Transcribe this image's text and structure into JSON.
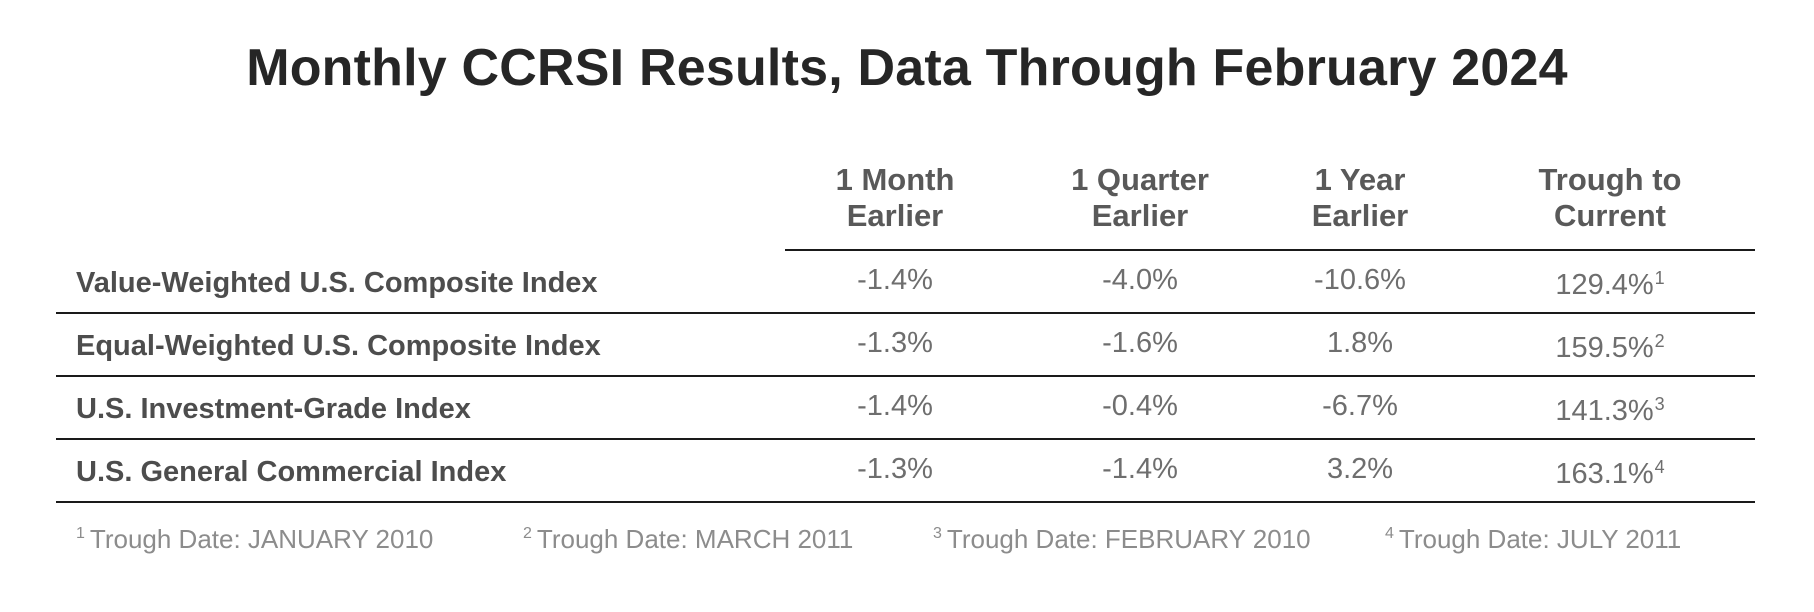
{
  "chart_data": {
    "type": "table",
    "title": "Monthly CCRSI Results, Data Through February 2024",
    "columns": [
      {
        "line1": "1 Month",
        "line2": "Earlier"
      },
      {
        "line1": "1 Quarter",
        "line2": "Earlier"
      },
      {
        "line1": "1 Year",
        "line2": "Earlier"
      },
      {
        "line1": "Trough to",
        "line2": "Current"
      }
    ],
    "rows": [
      {
        "label": "Value-Weighted U.S. Composite Index",
        "values": [
          "-1.4%",
          "-4.0%",
          "-10.6%",
          "129.4%"
        ],
        "footnote": "1"
      },
      {
        "label": "Equal-Weighted U.S. Composite Index",
        "values": [
          "-1.3%",
          "-1.6%",
          "1.8%",
          "159.5%"
        ],
        "footnote": "2"
      },
      {
        "label": "U.S. Investment-Grade Index",
        "values": [
          "-1.4%",
          "-0.4%",
          "-6.7%",
          "141.3%"
        ],
        "footnote": "3"
      },
      {
        "label": "U.S. General Commercial Index",
        "values": [
          "-1.3%",
          "-1.4%",
          "3.2%",
          "163.1%"
        ],
        "footnote": "4"
      }
    ],
    "footnotes": [
      {
        "mark": "1",
        "text": "Trough Date: JANUARY 2010"
      },
      {
        "mark": "2",
        "text": "Trough Date: MARCH 2011"
      },
      {
        "mark": "3",
        "text": "Trough Date: FEBRUARY 2010"
      },
      {
        "mark": "4",
        "text": "Trough Date: JULY 2011"
      }
    ]
  }
}
